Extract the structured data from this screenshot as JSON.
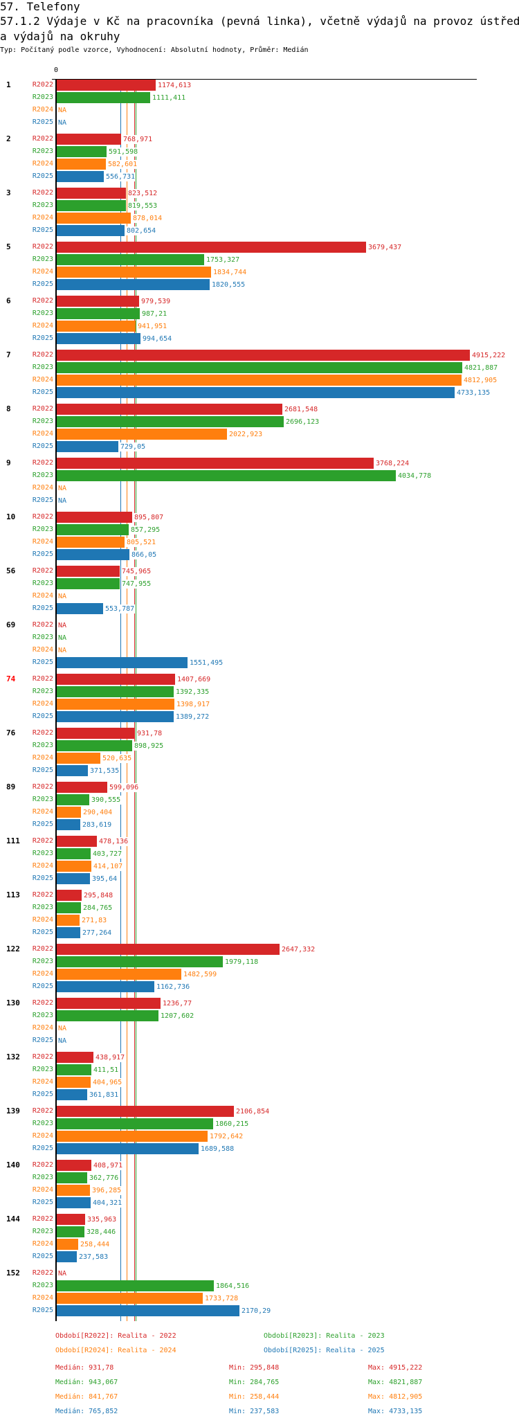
{
  "header": {
    "section": "57. Telefony",
    "title_line1": "57.1.2 Výdaje v Kč na pracovníka (pevná linka), včetně výdajů na provoz ústředen",
    "title_line2": "a výdajů na okruhy",
    "subtitle": "Typ: Počítaný podle vzorce, Vyhodnocení: Absolutní hodnoty, Průměr: Medián"
  },
  "chart_data": {
    "type": "bar",
    "orientation": "horizontal",
    "axis_zero_label": "0",
    "xlim": [
      0,
      4915.222
    ],
    "na_label": "NA",
    "highlight_group": "74",
    "highlight_color": "#ff0000",
    "series": [
      {
        "name": "R2022",
        "color": "#d62728"
      },
      {
        "name": "R2023",
        "color": "#2ca02c"
      },
      {
        "name": "R2024",
        "color": "#ff7f0e"
      },
      {
        "name": "R2025",
        "color": "#1f77b4"
      }
    ],
    "groups": [
      {
        "label": "1",
        "values": [
          1174.613,
          1111.411,
          null,
          null
        ]
      },
      {
        "label": "2",
        "values": [
          768.971,
          591.598,
          582.601,
          556.731
        ]
      },
      {
        "label": "3",
        "values": [
          823.512,
          819.553,
          878.014,
          802.654
        ]
      },
      {
        "label": "5",
        "values": [
          3679.437,
          1753.327,
          1834.744,
          1820.555
        ]
      },
      {
        "label": "6",
        "values": [
          979.539,
          987.21,
          941.951,
          994.654
        ]
      },
      {
        "label": "7",
        "values": [
          4915.222,
          4821.887,
          4812.905,
          4733.135
        ]
      },
      {
        "label": "8",
        "values": [
          2681.548,
          2696.123,
          2022.923,
          729.05
        ]
      },
      {
        "label": "9",
        "values": [
          3768.224,
          4034.778,
          null,
          null
        ]
      },
      {
        "label": "10",
        "values": [
          895.807,
          857.295,
          805.521,
          866.05
        ]
      },
      {
        "label": "56",
        "values": [
          745.965,
          747.955,
          null,
          553.787
        ]
      },
      {
        "label": "69",
        "values": [
          null,
          null,
          null,
          1551.495
        ]
      },
      {
        "label": "74",
        "values": [
          1407.669,
          1392.335,
          1398.917,
          1389.272
        ]
      },
      {
        "label": "76",
        "values": [
          931.78,
          898.925,
          520.635,
          371.535
        ]
      },
      {
        "label": "89",
        "values": [
          599.096,
          390.555,
          290.404,
          283.619
        ]
      },
      {
        "label": "111",
        "values": [
          478.136,
          403.727,
          414.107,
          395.64
        ]
      },
      {
        "label": "113",
        "values": [
          295.848,
          284.765,
          271.83,
          277.264
        ]
      },
      {
        "label": "122",
        "values": [
          2647.332,
          1979.118,
          1482.599,
          1162.736
        ]
      },
      {
        "label": "130",
        "values": [
          1236.77,
          1207.602,
          null,
          null
        ]
      },
      {
        "label": "132",
        "values": [
          438.917,
          411.51,
          404.965,
          361.831
        ]
      },
      {
        "label": "139",
        "values": [
          2106.854,
          1860.215,
          1792.642,
          1689.588
        ]
      },
      {
        "label": "140",
        "values": [
          408.971,
          362.776,
          396.285,
          404.321
        ]
      },
      {
        "label": "144",
        "values": [
          335.963,
          328.446,
          258.444,
          237.583
        ]
      },
      {
        "label": "152",
        "values": [
          null,
          1864.516,
          1733.728,
          2170.29
        ]
      }
    ],
    "medians": [
      931.78,
      943.067,
      841.767,
      765.852
    ]
  },
  "legend": {
    "periods": [
      "Období[R2022]: Realita - 2022",
      "Období[R2023]: Realita - 2023",
      "Období[R2024]: Realita - 2024",
      "Období[R2025]: Realita - 2025"
    ],
    "stats": [
      {
        "median": "Medián: 931,78",
        "min": "Min: 295,848",
        "max": "Max: 4915,222"
      },
      {
        "median": "Medián: 943,067",
        "min": "Min: 284,765",
        "max": "Max: 4821,887"
      },
      {
        "median": "Medián: 841,767",
        "min": "Min: 258,444",
        "max": "Max: 4812,905"
      },
      {
        "median": "Medián: 765,852",
        "min": "Min: 237,583",
        "max": "Max: 4733,135"
      }
    ]
  }
}
